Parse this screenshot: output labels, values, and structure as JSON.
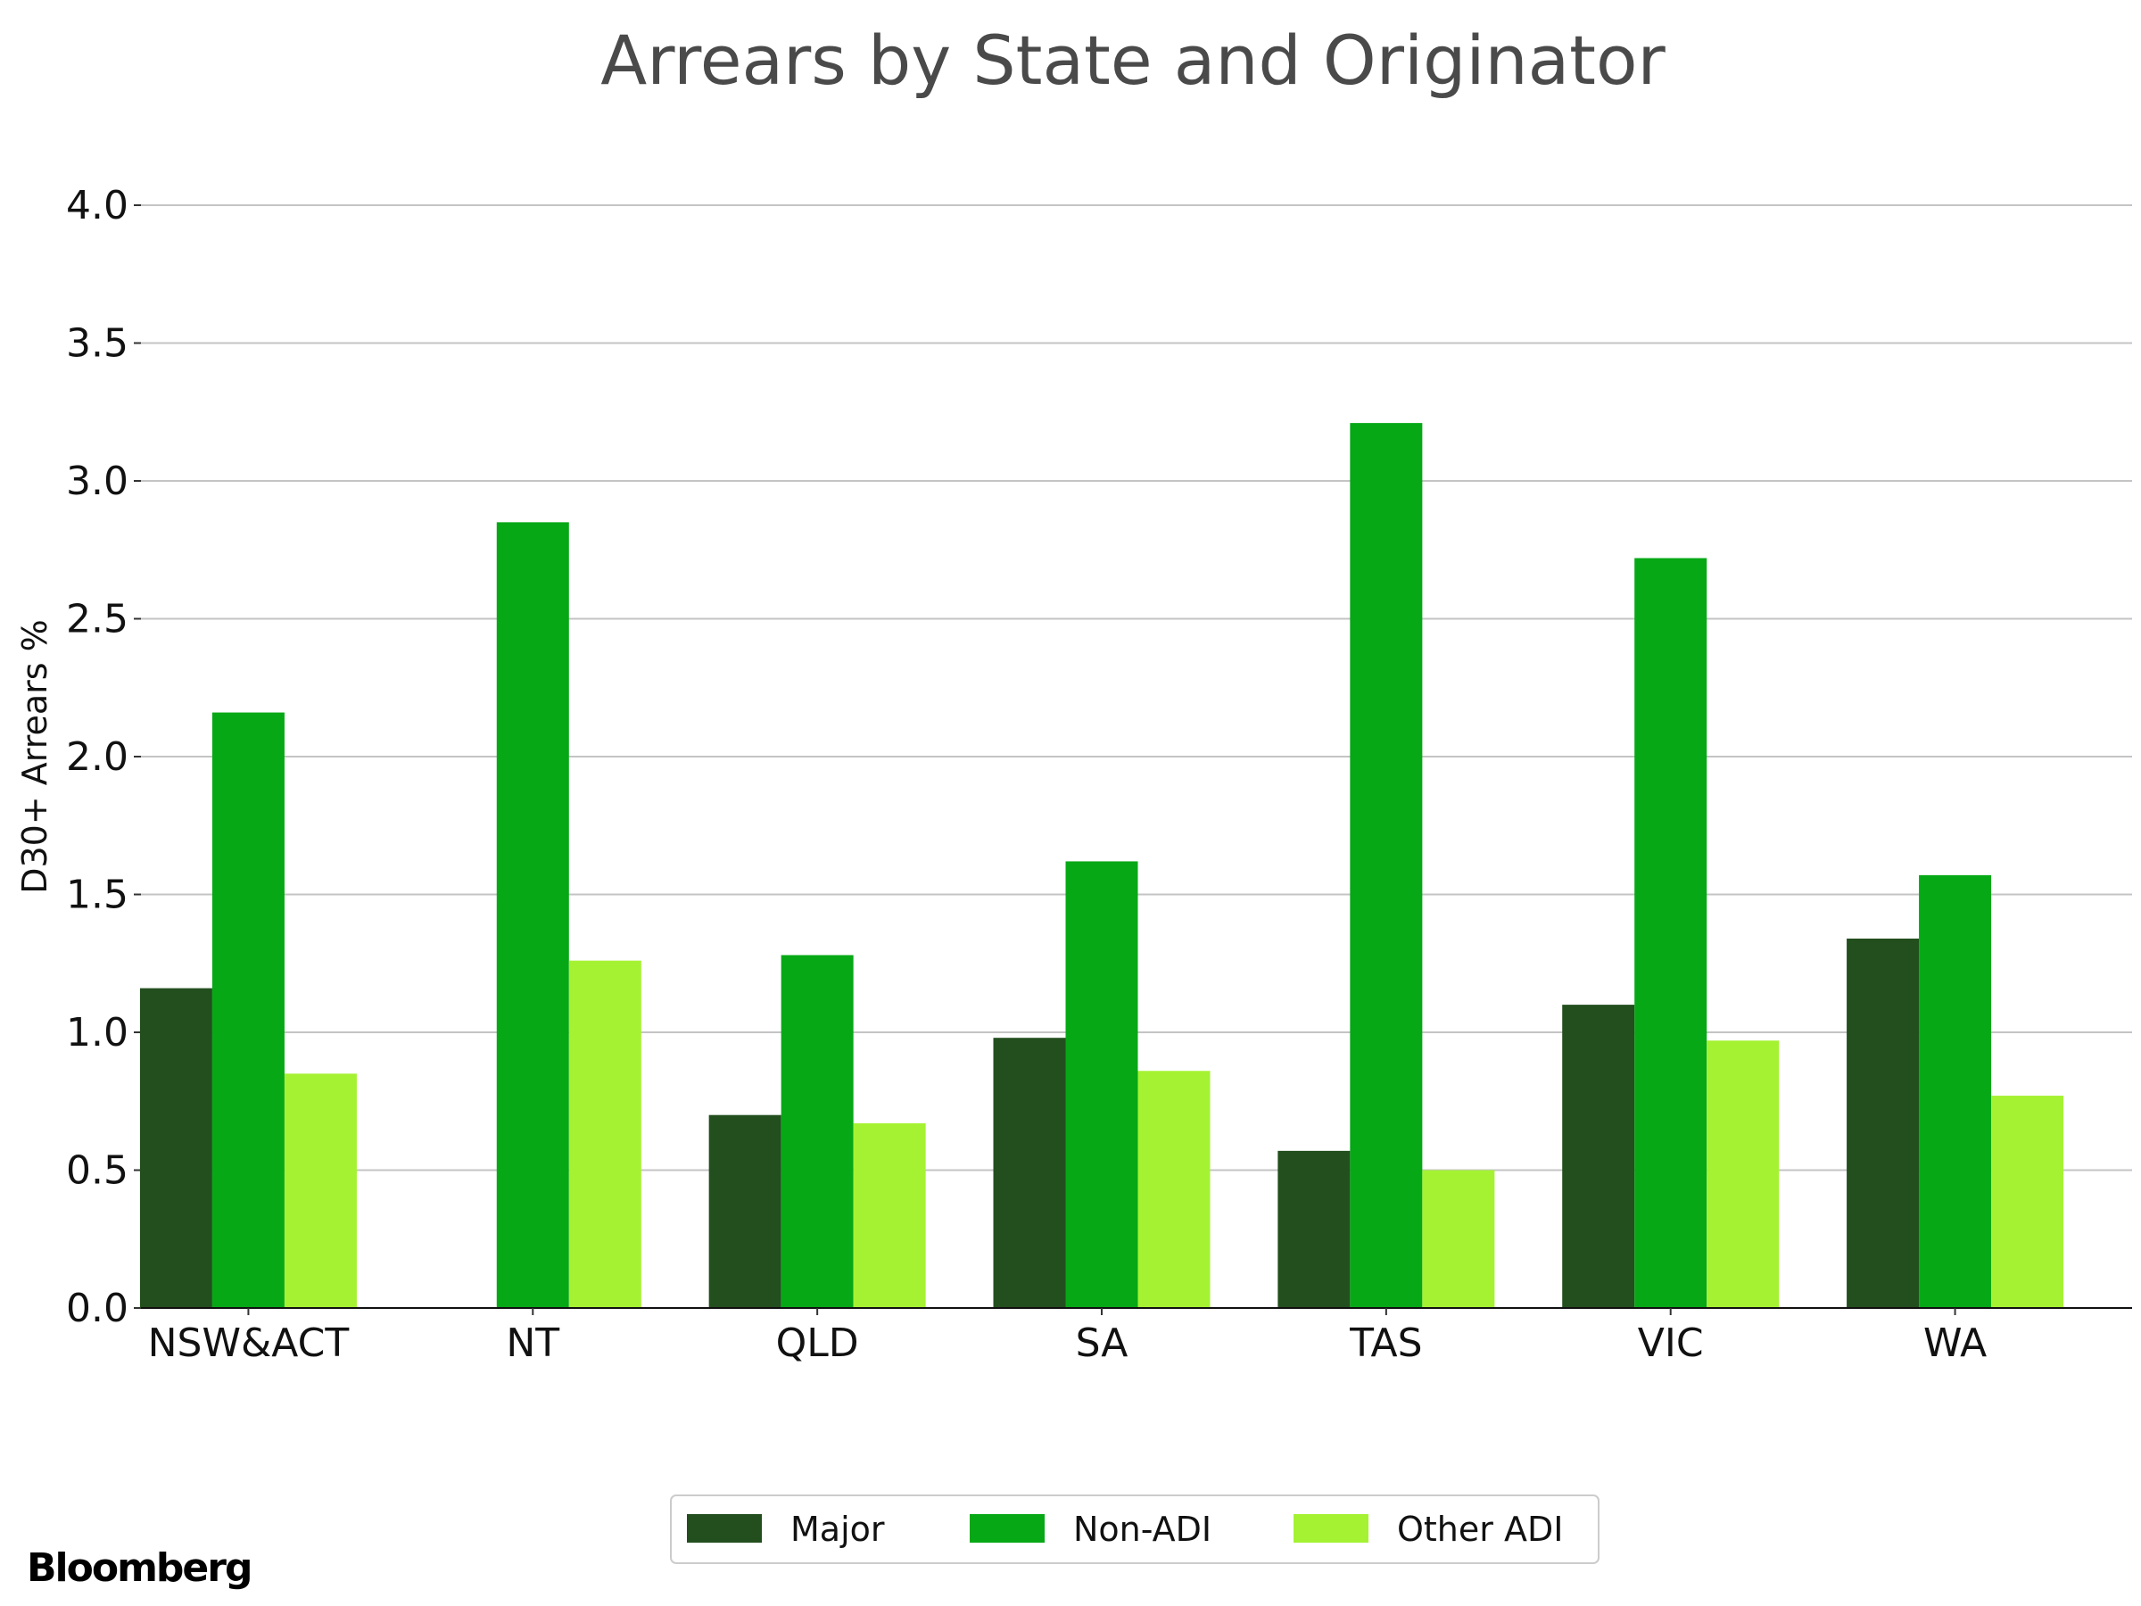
{
  "chart_data": {
    "type": "bar",
    "title": "Arrears by State and Originator",
    "xlabel": "",
    "ylabel": "D30+ Arrears %",
    "ylim": [
      0,
      4.0
    ],
    "yticks": [
      "0.0",
      "0.5",
      "1.0",
      "1.5",
      "2.0",
      "2.5",
      "3.0",
      "3.5",
      "4.0"
    ],
    "categories": [
      "NSW&ACT",
      "NT",
      "QLD",
      "SA",
      "TAS",
      "VIC",
      "WA"
    ],
    "series": [
      {
        "name": "Major",
        "color": "#234f1e",
        "values": [
          1.16,
          null,
          0.7,
          0.98,
          0.57,
          1.1,
          1.34
        ]
      },
      {
        "name": "Non-ADI",
        "color": "#06a816",
        "values": [
          2.16,
          2.85,
          1.28,
          1.62,
          3.21,
          2.72,
          1.57
        ]
      },
      {
        "name": "Other ADI",
        "color": "#a5f233",
        "values": [
          0.85,
          1.26,
          0.67,
          0.86,
          0.5,
          0.97,
          0.77
        ]
      }
    ],
    "grid": "horizontal",
    "legend_position": "bottom-center"
  },
  "branding": {
    "source_logo": "Bloomberg"
  }
}
